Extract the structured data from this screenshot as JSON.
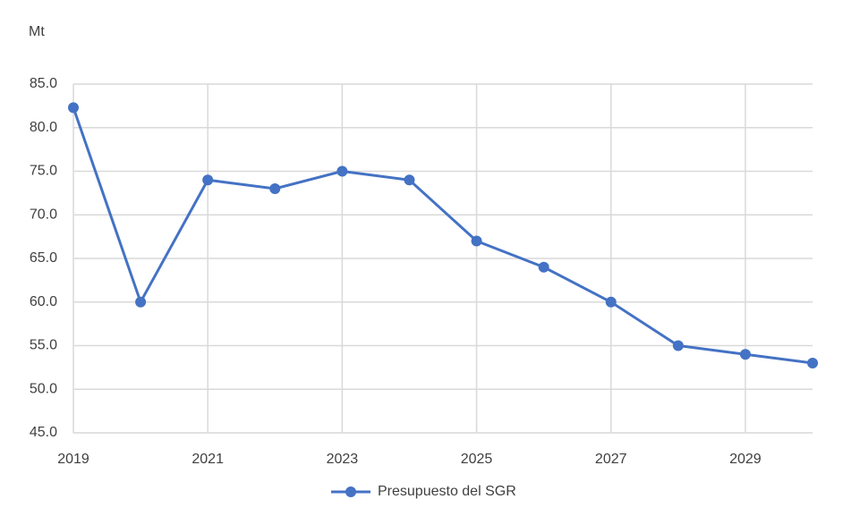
{
  "chart_data": {
    "type": "line",
    "y_label": "Mt",
    "x": [
      2019,
      2020,
      2021,
      2022,
      2023,
      2024,
      2025,
      2026,
      2027,
      2028,
      2029,
      2030
    ],
    "series": [
      {
        "name": "Presupuesto del SGR",
        "color": "#4472c4",
        "values": [
          82.3,
          60,
          74,
          73,
          75,
          74,
          67,
          64,
          60,
          55,
          54,
          53
        ]
      }
    ],
    "xlim": [
      2019,
      2030
    ],
    "xticks": [
      2019,
      2021,
      2023,
      2025,
      2027,
      2029
    ],
    "ylim": [
      45,
      85
    ],
    "yticks": [
      {
        "value": 45,
        "label": "45.0"
      },
      {
        "value": 50,
        "label": "50.0"
      },
      {
        "value": 55,
        "label": "55.0"
      },
      {
        "value": 60,
        "label": "60.0"
      },
      {
        "value": 65,
        "label": "65.0"
      },
      {
        "value": 70,
        "label": "70.0"
      },
      {
        "value": 75,
        "label": "75.0"
      },
      {
        "value": 80,
        "label": "80.0"
      },
      {
        "value": 85,
        "label": "85.0"
      }
    ],
    "grid": true,
    "legend": "bottom"
  }
}
